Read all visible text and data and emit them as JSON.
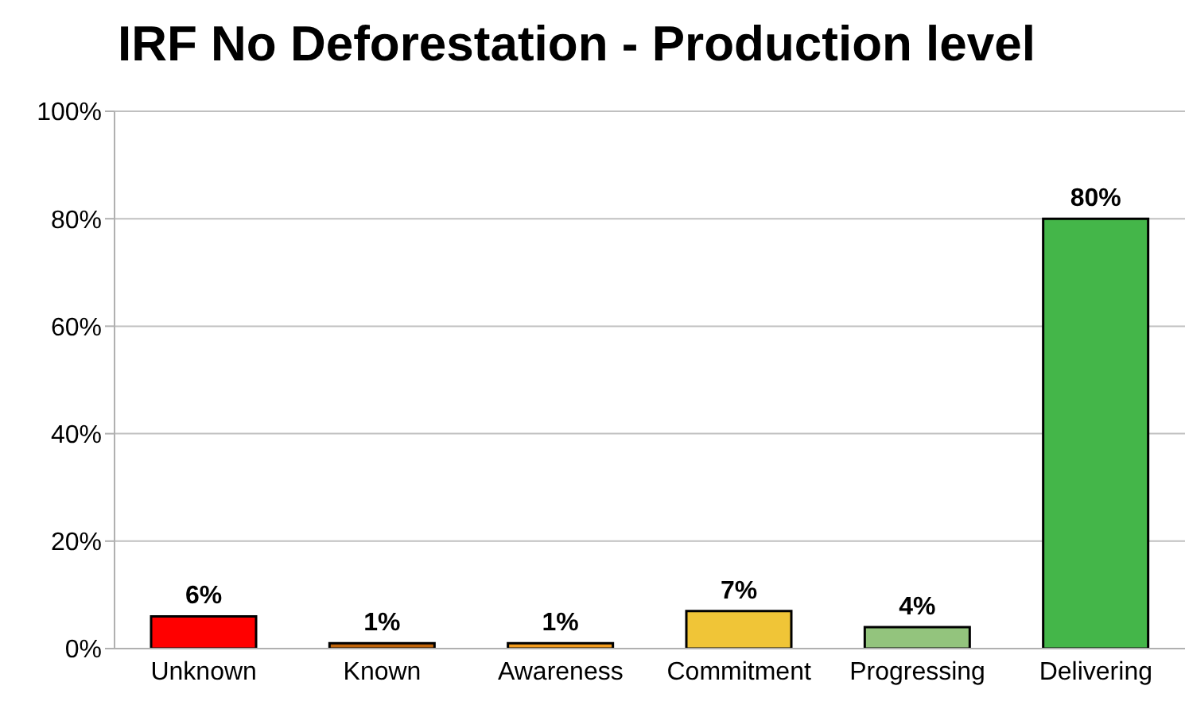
{
  "chart_data": {
    "type": "bar",
    "title": "IRF No Deforestation - Production level",
    "categories": [
      "Unknown",
      "Known",
      "Awareness",
      "Commitment",
      "Progressing",
      "Delivering"
    ],
    "values": [
      6,
      1,
      1,
      7,
      4,
      80
    ],
    "colors": [
      "#ff0000",
      "#c0640a",
      "#f39c1e",
      "#f0c537",
      "#93c47d",
      "#44b649"
    ],
    "ylim": [
      0,
      100
    ],
    "yticks": [
      {
        "value": 0,
        "label": "0%"
      },
      {
        "value": 20,
        "label": "20%"
      },
      {
        "value": 40,
        "label": "40%"
      },
      {
        "value": 60,
        "label": "60%"
      },
      {
        "value": 80,
        "label": "80%"
      },
      {
        "value": 100,
        "label": "100%"
      }
    ],
    "value_labels": [
      "6%",
      "1%",
      "1%",
      "7%",
      "4%",
      "80%"
    ],
    "grid": "y"
  }
}
